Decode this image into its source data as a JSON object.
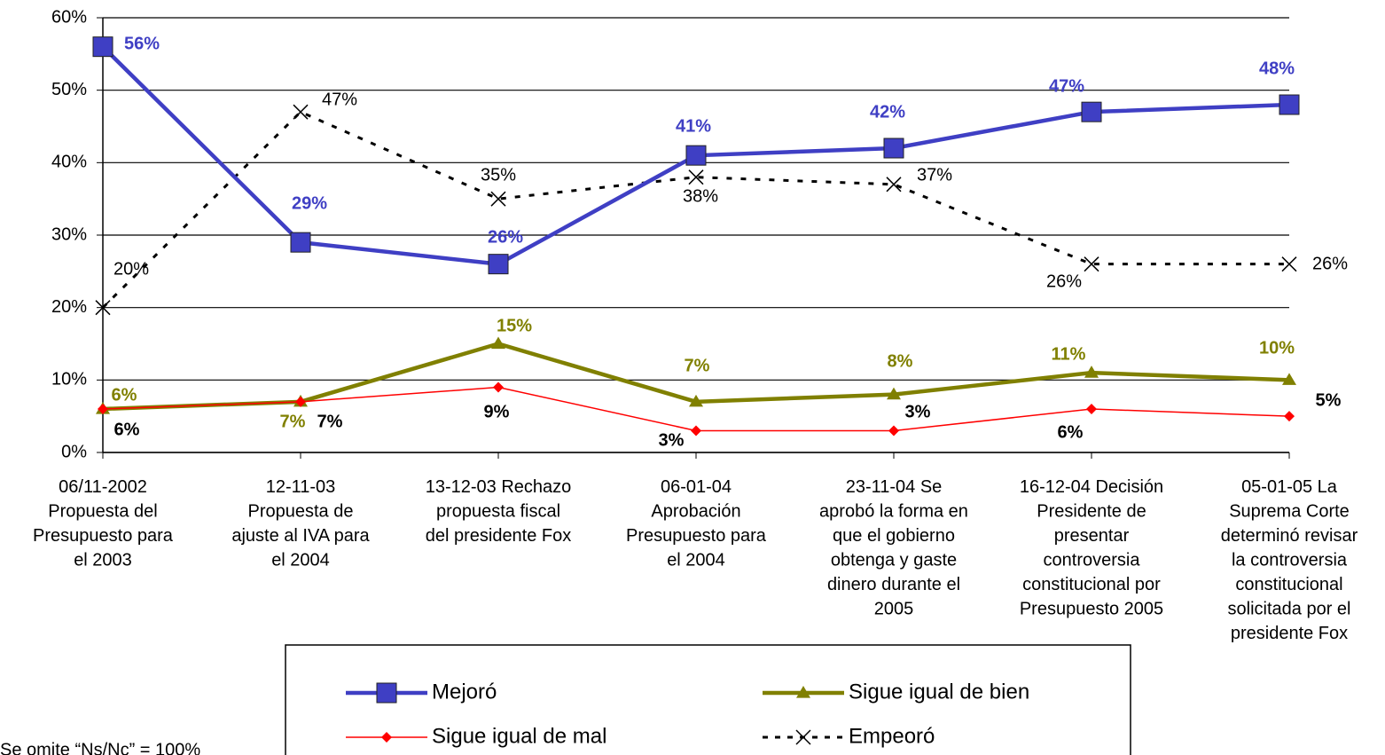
{
  "chart_data": {
    "type": "line",
    "categories": [
      "06/11-2002\nPropuesta del\nPresupuesto para\nel 2003",
      "12-11-03\nPropuesta de\najuste al IVA para\nel 2004",
      "13-12-03 Rechazo\npropuesta fiscal\ndel presidente Fox",
      "06-01-04\nAprobación\nPresupuesto para\nel 2004",
      "23-11-04 Se\naprobó la forma en\nque el gobierno\nobtenga y gaste\ndinero durante el\n2005",
      "16-12-04 Decisión\nPresidente de\npresentar\ncontroversia\nconstitucional por\nPresupuesto 2005",
      "05-01-05 La\nSuprema Corte\ndeterminó revisar\nla controversia\nconstitucional\nsolicitada por el\npresidente Fox"
    ],
    "series": [
      {
        "name": "Mejoró",
        "color": "#3f3fc4",
        "values": [
          56,
          29,
          26,
          41,
          42,
          47,
          48
        ],
        "value_labels": [
          "56%",
          "29%",
          "26%",
          "41%",
          "42%",
          "47%",
          "48%"
        ]
      },
      {
        "name": "Sigue igual de bien",
        "color": "#808000",
        "values": [
          6,
          7,
          15,
          7,
          8,
          11,
          10
        ],
        "value_labels": [
          "6%",
          "7%",
          "15%",
          "7%",
          "8%",
          "11%",
          "10%"
        ]
      },
      {
        "name": "Sigue igual de mal",
        "color": "#ff0000",
        "values": [
          6,
          7,
          9,
          3,
          3,
          6,
          5
        ],
        "value_labels": [
          "6%",
          "7%",
          "9%",
          "3%",
          "3%",
          "6%",
          "5%"
        ]
      },
      {
        "name": "Empeoró",
        "color": "#000000",
        "values": [
          20,
          47,
          35,
          38,
          37,
          26,
          26
        ],
        "value_labels": [
          "20%",
          "47%",
          "35%",
          "38%",
          "37%",
          "26%",
          "26%"
        ]
      }
    ],
    "ylim": [
      0,
      60
    ],
    "yticks": [
      {
        "value": 0,
        "label": "0%"
      },
      {
        "value": 10,
        "label": "10%"
      },
      {
        "value": 20,
        "label": "20%"
      },
      {
        "value": 30,
        "label": "30%"
      },
      {
        "value": 40,
        "label": "40%"
      },
      {
        "value": 50,
        "label": "50%"
      },
      {
        "value": 60,
        "label": "60%"
      }
    ],
    "grid": true,
    "footnote": "Se omite “Ns/Nc” = 100%"
  }
}
